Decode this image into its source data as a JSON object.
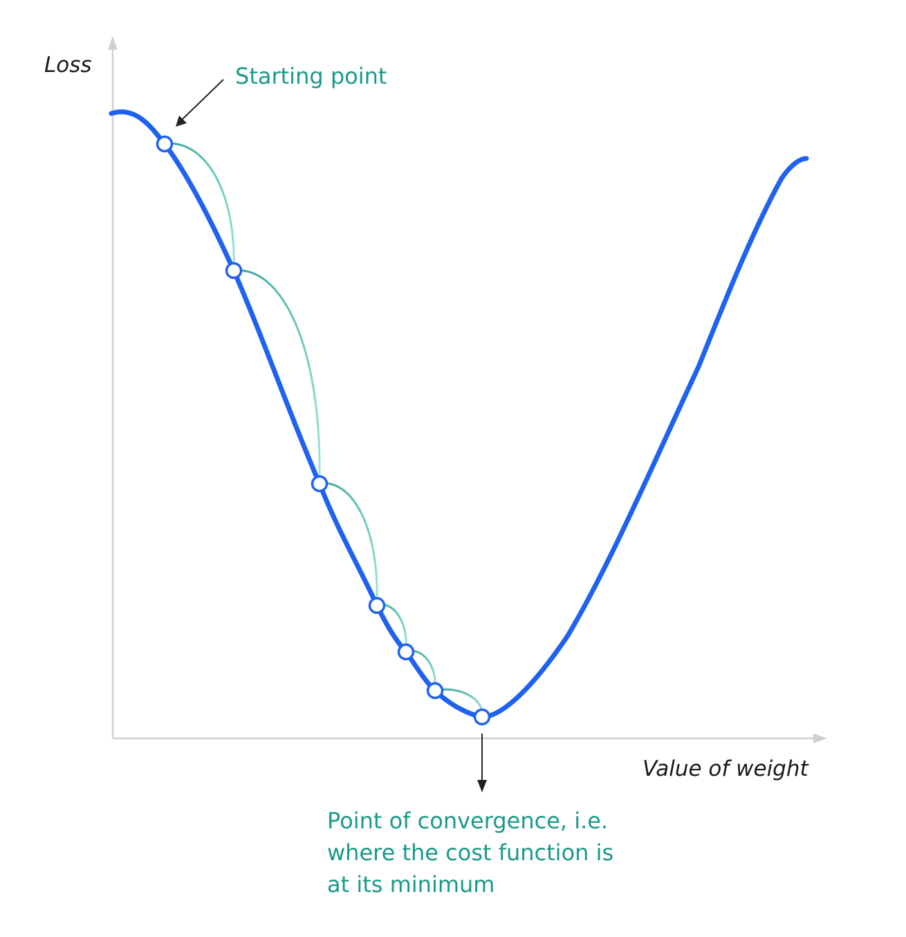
{
  "labels": {
    "y_axis": "Loss",
    "x_axis": "Value of weight",
    "start": "Starting point",
    "convergence": [
      "Point of convergence, i.e.",
      "where the cost function is",
      "at its minimum"
    ]
  },
  "colors": {
    "curve": "#1f62f0",
    "arc": "#7fd9cc",
    "arc_dark": "#37a899",
    "annotation_text": "#1a9989",
    "axis": "#d0d0d0",
    "pointer_arrow": "#222222",
    "axis_title": "#1a1a1a"
  },
  "diagram": {
    "curve": "loss curve (single valley)",
    "steps": 7,
    "marker": "hollow circle",
    "step_connector": "arc"
  }
}
